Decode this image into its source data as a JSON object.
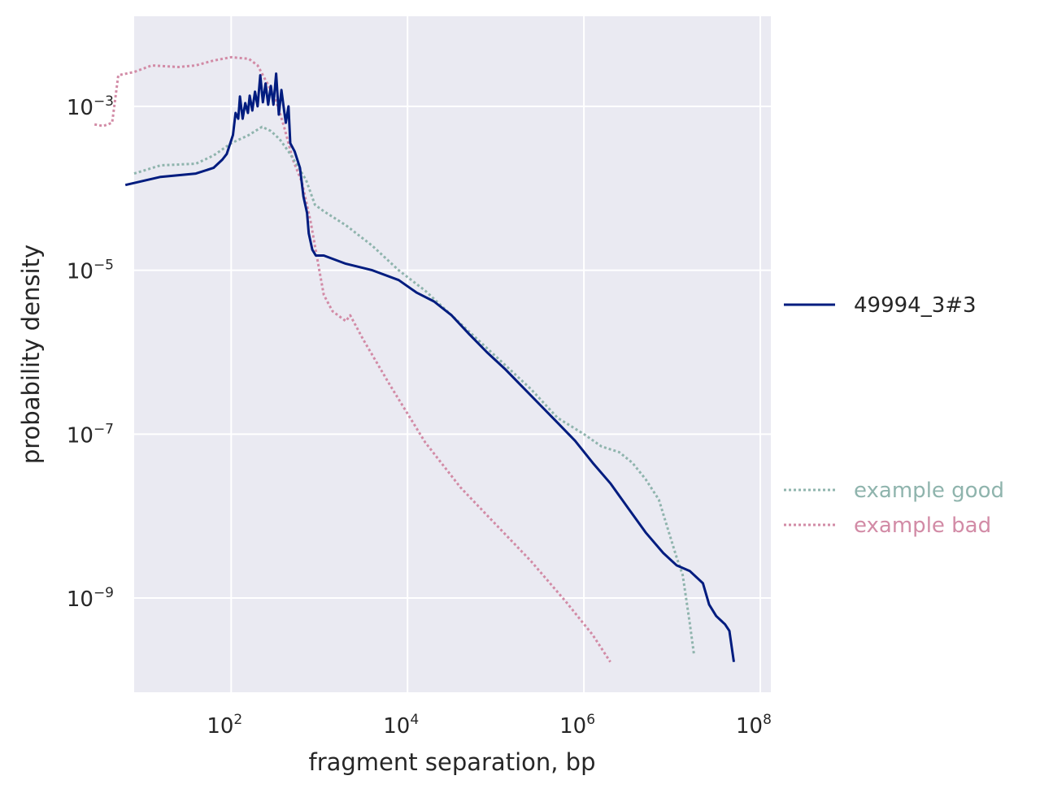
{
  "chart_data": {
    "type": "line",
    "xlabel": "fragment separation, bp",
    "ylabel": "probability density",
    "xscale": "log",
    "yscale": "log",
    "xlim_log10": [
      0.9,
      8.12
    ],
    "ylim_log10": [
      -10.15,
      -1.9
    ],
    "xticks": [
      {
        "base": "10",
        "exp": "2",
        "value": 100
      },
      {
        "base": "10",
        "exp": "4",
        "value": 10000
      },
      {
        "base": "10",
        "exp": "6",
        "value": 1000000
      },
      {
        "base": "10",
        "exp": "8",
        "value": 100000000
      }
    ],
    "yticks": [
      {
        "base": "10",
        "exp": "−3",
        "value": 0.001
      },
      {
        "base": "10",
        "exp": "−5",
        "value": 1e-05
      },
      {
        "base": "10",
        "exp": "−7",
        "value": 1e-07
      },
      {
        "base": "10",
        "exp": "−9",
        "value": 1e-09
      }
    ],
    "grid": true,
    "background_color": "#eaeaf2",
    "legend": [
      {
        "label": "49994_3#3",
        "color": "#001c7f",
        "style": "solid",
        "text_color": "#262626"
      },
      {
        "label": "example good",
        "color": "#8fb4ad",
        "style": "dotted",
        "text_color": "#8fb4ad"
      },
      {
        "label": "example bad",
        "color": "#d28ba6",
        "style": "dotted",
        "text_color": "#d28ba6"
      }
    ],
    "legend_placement": "outside right",
    "series": [
      {
        "name": "49994_3#3",
        "color": "#001c7f",
        "style": "solid",
        "points_log10": [
          [
            0.8,
            -3.96
          ],
          [
            1.2,
            -3.86
          ],
          [
            1.6,
            -3.82
          ],
          [
            1.8,
            -3.75
          ],
          [
            1.9,
            -3.65
          ],
          [
            1.95,
            -3.58
          ],
          [
            1.99,
            -3.45
          ],
          [
            2.02,
            -3.35
          ],
          [
            2.05,
            -3.08
          ],
          [
            2.08,
            -3.15
          ],
          [
            2.1,
            -2.88
          ],
          [
            2.13,
            -3.15
          ],
          [
            2.16,
            -2.96
          ],
          [
            2.19,
            -3.08
          ],
          [
            2.21,
            -2.87
          ],
          [
            2.24,
            -3.05
          ],
          [
            2.27,
            -2.82
          ],
          [
            2.3,
            -3.0
          ],
          [
            2.33,
            -2.62
          ],
          [
            2.36,
            -2.95
          ],
          [
            2.39,
            -2.72
          ],
          [
            2.42,
            -2.98
          ],
          [
            2.45,
            -2.75
          ],
          [
            2.48,
            -2.98
          ],
          [
            2.51,
            -2.6
          ],
          [
            2.54,
            -3.1
          ],
          [
            2.57,
            -2.8
          ],
          [
            2.6,
            -3.05
          ],
          [
            2.62,
            -3.2
          ],
          [
            2.65,
            -3.0
          ],
          [
            2.67,
            -3.45
          ],
          [
            2.72,
            -3.55
          ],
          [
            2.78,
            -3.75
          ],
          [
            2.82,
            -4.1
          ],
          [
            2.86,
            -4.3
          ],
          [
            2.88,
            -4.55
          ],
          [
            2.92,
            -4.75
          ],
          [
            2.96,
            -4.82
          ],
          [
            3.05,
            -4.82
          ],
          [
            3.3,
            -4.92
          ],
          [
            3.6,
            -5.0
          ],
          [
            3.9,
            -5.12
          ],
          [
            4.1,
            -5.27
          ],
          [
            4.3,
            -5.38
          ],
          [
            4.5,
            -5.55
          ],
          [
            4.7,
            -5.78
          ],
          [
            4.9,
            -6.0
          ],
          [
            5.1,
            -6.2
          ],
          [
            5.3,
            -6.42
          ],
          [
            5.5,
            -6.64
          ],
          [
            5.7,
            -6.86
          ],
          [
            5.9,
            -7.08
          ],
          [
            6.1,
            -7.35
          ],
          [
            6.3,
            -7.6
          ],
          [
            6.5,
            -7.9
          ],
          [
            6.7,
            -8.2
          ],
          [
            6.9,
            -8.45
          ],
          [
            7.05,
            -8.6
          ],
          [
            7.2,
            -8.67
          ],
          [
            7.35,
            -8.82
          ],
          [
            7.42,
            -9.08
          ],
          [
            7.5,
            -9.22
          ],
          [
            7.6,
            -9.32
          ],
          [
            7.65,
            -9.4
          ],
          [
            7.7,
            -9.78
          ]
        ]
      },
      {
        "name": "example good",
        "color": "#8fb4ad",
        "style": "dotted",
        "points_log10": [
          [
            0.9,
            -3.82
          ],
          [
            1.2,
            -3.72
          ],
          [
            1.6,
            -3.7
          ],
          [
            1.8,
            -3.6
          ],
          [
            2.0,
            -3.45
          ],
          [
            2.2,
            -3.35
          ],
          [
            2.35,
            -3.25
          ],
          [
            2.45,
            -3.3
          ],
          [
            2.55,
            -3.4
          ],
          [
            2.65,
            -3.55
          ],
          [
            2.75,
            -3.72
          ],
          [
            2.85,
            -3.9
          ],
          [
            2.95,
            -4.2
          ],
          [
            3.05,
            -4.28
          ],
          [
            3.3,
            -4.45
          ],
          [
            3.6,
            -4.7
          ],
          [
            3.9,
            -5.0
          ],
          [
            4.2,
            -5.25
          ],
          [
            4.5,
            -5.55
          ],
          [
            4.8,
            -5.85
          ],
          [
            5.1,
            -6.15
          ],
          [
            5.4,
            -6.45
          ],
          [
            5.7,
            -6.8
          ],
          [
            6.0,
            -7.0
          ],
          [
            6.2,
            -7.15
          ],
          [
            6.4,
            -7.22
          ],
          [
            6.55,
            -7.35
          ],
          [
            6.7,
            -7.55
          ],
          [
            6.85,
            -7.8
          ],
          [
            6.95,
            -8.15
          ],
          [
            7.05,
            -8.5
          ],
          [
            7.12,
            -8.72
          ],
          [
            7.2,
            -9.3
          ],
          [
            7.25,
            -9.7
          ]
        ]
      },
      {
        "name": "example bad",
        "color": "#d28ba6",
        "style": "dotted",
        "points_log10": [
          [
            0.45,
            -3.22
          ],
          [
            0.55,
            -3.24
          ],
          [
            0.65,
            -3.2
          ],
          [
            0.72,
            -2.62
          ],
          [
            0.9,
            -2.58
          ],
          [
            1.1,
            -2.5
          ],
          [
            1.4,
            -2.52
          ],
          [
            1.6,
            -2.5
          ],
          [
            1.8,
            -2.44
          ],
          [
            2.0,
            -2.4
          ],
          [
            2.2,
            -2.42
          ],
          [
            2.3,
            -2.5
          ],
          [
            2.4,
            -2.7
          ],
          [
            2.5,
            -2.9
          ],
          [
            2.6,
            -3.25
          ],
          [
            2.7,
            -3.65
          ],
          [
            2.8,
            -3.92
          ],
          [
            2.9,
            -4.4
          ],
          [
            3.0,
            -5.0
          ],
          [
            3.05,
            -5.3
          ],
          [
            3.15,
            -5.5
          ],
          [
            3.3,
            -5.62
          ],
          [
            3.35,
            -5.55
          ],
          [
            3.5,
            -5.85
          ],
          [
            3.8,
            -6.4
          ],
          [
            4.2,
            -7.1
          ],
          [
            4.6,
            -7.65
          ],
          [
            5.0,
            -8.1
          ],
          [
            5.4,
            -8.55
          ],
          [
            5.8,
            -9.05
          ],
          [
            6.1,
            -9.45
          ],
          [
            6.3,
            -9.78
          ]
        ]
      }
    ]
  }
}
